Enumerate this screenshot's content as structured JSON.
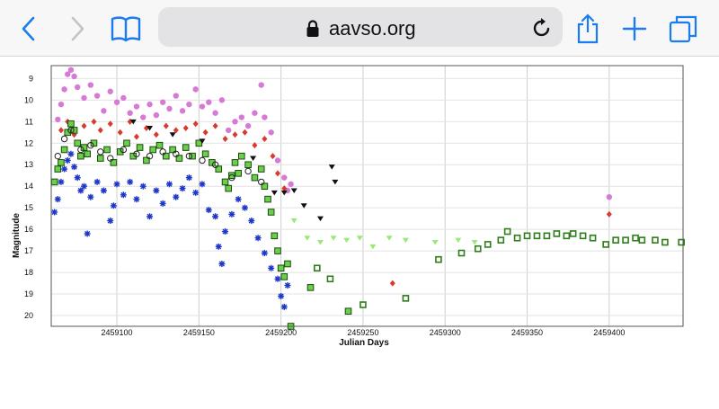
{
  "browser": {
    "url": "aavso.org",
    "colors": {
      "accent": "#1a7cf0",
      "url_bar": "#e3e3e5",
      "toolbar": "#f7f7f7"
    },
    "icons": [
      "back-chevron-icon",
      "forward-chevron-icon",
      "bookmarks-icon",
      "lock-icon",
      "reload-icon",
      "share-icon",
      "plus-icon",
      "tabs-icon"
    ]
  },
  "chart_data": {
    "type": "scatter",
    "xlabel": "Julian Days",
    "ylabel": "Magnitude",
    "xlim": [
      2459060,
      2459445
    ],
    "ylim": [
      20.5,
      8.4
    ],
    "y_inverted": true,
    "grid": true,
    "xticks": [
      2459100,
      2459150,
      2459200,
      2459250,
      2459300,
      2459350,
      2459400
    ],
    "xtick_labels": [
      "2459100",
      "2459150",
      "2459200",
      "2459250",
      "2459300",
      "2459350",
      "2459400"
    ],
    "yticks": [
      9,
      10,
      11,
      12,
      13,
      14,
      15,
      16,
      17,
      18,
      19,
      20
    ],
    "ytick_labels": [
      "9",
      "10",
      "11",
      "12",
      "13",
      "14",
      "15",
      "16",
      "17",
      "18",
      "19",
      "20"
    ],
    "series": [
      {
        "marker": "circle",
        "color": "#d67ad6",
        "points": [
          [
            2459064,
            10.9
          ],
          [
            2459066,
            10.2
          ],
          [
            2459068,
            9.5
          ],
          [
            2459070,
            8.8
          ],
          [
            2459072,
            8.6
          ],
          [
            2459074,
            8.9
          ],
          [
            2459076,
            9.4
          ],
          [
            2459080,
            9.9
          ],
          [
            2459084,
            9.3
          ],
          [
            2459088,
            9.8
          ],
          [
            2459092,
            10.5
          ],
          [
            2459096,
            9.6
          ],
          [
            2459100,
            10.1
          ],
          [
            2459104,
            9.9
          ],
          [
            2459108,
            10.6
          ],
          [
            2459112,
            10.3
          ],
          [
            2459116,
            10.8
          ],
          [
            2459120,
            10.2
          ],
          [
            2459124,
            10.7
          ],
          [
            2459128,
            10.1
          ],
          [
            2459132,
            10.4
          ],
          [
            2459136,
            9.8
          ],
          [
            2459140,
            10.5
          ],
          [
            2459144,
            10.2
          ],
          [
            2459148,
            9.5
          ],
          [
            2459152,
            10.3
          ],
          [
            2459156,
            10.1
          ],
          [
            2459160,
            10.6
          ],
          [
            2459164,
            10.0
          ],
          [
            2459168,
            11.4
          ],
          [
            2459172,
            11.0
          ],
          [
            2459176,
            10.8
          ],
          [
            2459180,
            11.2
          ],
          [
            2459184,
            10.6
          ],
          [
            2459188,
            9.3
          ],
          [
            2459190,
            10.8
          ],
          [
            2459194,
            11.5
          ],
          [
            2459198,
            12.8
          ],
          [
            2459202,
            13.6
          ],
          [
            2459204,
            14.2
          ],
          [
            2459206,
            13.9
          ],
          [
            2459400,
            14.5
          ]
        ]
      },
      {
        "marker": "diamond",
        "color": "#d83a2b",
        "points": [
          [
            2459066,
            11.4
          ],
          [
            2459070,
            11.0
          ],
          [
            2459074,
            11.6
          ],
          [
            2459080,
            11.2
          ],
          [
            2459086,
            11.0
          ],
          [
            2459090,
            11.4
          ],
          [
            2459096,
            11.1
          ],
          [
            2459102,
            11.5
          ],
          [
            2459108,
            11.0
          ],
          [
            2459112,
            11.7
          ],
          [
            2459118,
            11.3
          ],
          [
            2459124,
            11.6
          ],
          [
            2459130,
            11.2
          ],
          [
            2459136,
            11.4
          ],
          [
            2459142,
            11.3
          ],
          [
            2459148,
            11.1
          ],
          [
            2459154,
            11.5
          ],
          [
            2459160,
            11.2
          ],
          [
            2459166,
            11.8
          ],
          [
            2459172,
            11.6
          ],
          [
            2459178,
            11.5
          ],
          [
            2459184,
            12.1
          ],
          [
            2459190,
            11.8
          ],
          [
            2459195,
            12.6
          ],
          [
            2459198,
            13.4
          ],
          [
            2459202,
            14.1
          ],
          [
            2459268,
            18.5
          ],
          [
            2459400,
            15.3
          ]
        ]
      },
      {
        "marker": "square",
        "color": "#6ad04a",
        "points": [
          [
            2459062,
            13.8
          ],
          [
            2459064,
            13.2
          ],
          [
            2459066,
            12.9
          ],
          [
            2459068,
            12.3
          ],
          [
            2459070,
            11.5
          ],
          [
            2459072,
            11.1
          ],
          [
            2459074,
            11.4
          ],
          [
            2459076,
            12.0
          ],
          [
            2459078,
            12.6
          ],
          [
            2459080,
            12.2
          ],
          [
            2459082,
            12.5
          ],
          [
            2459086,
            12.0
          ],
          [
            2459090,
            12.7
          ],
          [
            2459094,
            12.3
          ],
          [
            2459098,
            12.9
          ],
          [
            2459102,
            12.4
          ],
          [
            2459106,
            12.0
          ],
          [
            2459110,
            12.6
          ],
          [
            2459114,
            12.2
          ],
          [
            2459118,
            12.8
          ],
          [
            2459122,
            12.3
          ],
          [
            2459126,
            12.1
          ],
          [
            2459130,
            12.6
          ],
          [
            2459134,
            12.3
          ],
          [
            2459138,
            12.7
          ],
          [
            2459142,
            12.2
          ],
          [
            2459146,
            12.6
          ],
          [
            2459150,
            12.0
          ],
          [
            2459154,
            12.5
          ],
          [
            2459158,
            12.9
          ],
          [
            2459162,
            13.2
          ],
          [
            2459166,
            13.8
          ],
          [
            2459168,
            14.1
          ],
          [
            2459170,
            13.5
          ],
          [
            2459172,
            12.9
          ],
          [
            2459174,
            13.4
          ],
          [
            2459176,
            12.6
          ],
          [
            2459180,
            13.0
          ],
          [
            2459184,
            13.6
          ],
          [
            2459188,
            13.2
          ],
          [
            2459190,
            14.0
          ],
          [
            2459192,
            14.6
          ],
          [
            2459194,
            15.2
          ],
          [
            2459196,
            16.3
          ],
          [
            2459198,
            17.0
          ],
          [
            2459200,
            17.8
          ],
          [
            2459202,
            18.2
          ],
          [
            2459204,
            17.6
          ],
          [
            2459206,
            20.5
          ],
          [
            2459218,
            18.7
          ],
          [
            2459241,
            19.8
          ]
        ]
      },
      {
        "marker": "circle-open",
        "color": "#222222",
        "points": [
          [
            2459064,
            12.6
          ],
          [
            2459068,
            11.8
          ],
          [
            2459072,
            11.4
          ],
          [
            2459078,
            12.3
          ],
          [
            2459084,
            12.1
          ],
          [
            2459090,
            12.4
          ],
          [
            2459096,
            12.7
          ],
          [
            2459104,
            12.3
          ],
          [
            2459112,
            12.5
          ],
          [
            2459120,
            12.6
          ],
          [
            2459128,
            12.4
          ],
          [
            2459136,
            12.5
          ],
          [
            2459144,
            12.6
          ],
          [
            2459152,
            12.8
          ],
          [
            2459160,
            13.0
          ],
          [
            2459170,
            13.6
          ],
          [
            2459180,
            13.3
          ],
          [
            2459188,
            13.8
          ]
        ]
      },
      {
        "marker": "star",
        "color": "#1f37c8",
        "points": [
          [
            2459062,
            15.2
          ],
          [
            2459064,
            14.6
          ],
          [
            2459066,
            13.8
          ],
          [
            2459068,
            13.2
          ],
          [
            2459070,
            12.8
          ],
          [
            2459072,
            12.5
          ],
          [
            2459074,
            13.1
          ],
          [
            2459076,
            13.6
          ],
          [
            2459078,
            14.2
          ],
          [
            2459080,
            14.0
          ],
          [
            2459082,
            16.2
          ],
          [
            2459084,
            14.5
          ],
          [
            2459088,
            13.8
          ],
          [
            2459092,
            14.2
          ],
          [
            2459096,
            15.6
          ],
          [
            2459098,
            14.9
          ],
          [
            2459100,
            13.9
          ],
          [
            2459104,
            14.4
          ],
          [
            2459108,
            13.8
          ],
          [
            2459112,
            14.6
          ],
          [
            2459116,
            14.0
          ],
          [
            2459120,
            15.4
          ],
          [
            2459124,
            14.2
          ],
          [
            2459128,
            14.8
          ],
          [
            2459132,
            13.9
          ],
          [
            2459136,
            14.5
          ],
          [
            2459140,
            14.1
          ],
          [
            2459144,
            13.6
          ],
          [
            2459148,
            14.3
          ],
          [
            2459152,
            13.9
          ],
          [
            2459156,
            15.1
          ],
          [
            2459160,
            15.4
          ],
          [
            2459162,
            16.8
          ],
          [
            2459164,
            17.6
          ],
          [
            2459166,
            16.1
          ],
          [
            2459170,
            15.3
          ],
          [
            2459174,
            14.6
          ],
          [
            2459178,
            15.0
          ],
          [
            2459182,
            15.6
          ],
          [
            2459186,
            16.4
          ],
          [
            2459190,
            17.1
          ],
          [
            2459194,
            17.8
          ],
          [
            2459198,
            18.3
          ],
          [
            2459200,
            19.1
          ],
          [
            2459202,
            19.6
          ],
          [
            2459204,
            18.6
          ]
        ]
      },
      {
        "marker": "triangle-down",
        "color": "#111111",
        "points": [
          [
            2459110,
            11.0
          ],
          [
            2459120,
            11.3
          ],
          [
            2459134,
            11.6
          ],
          [
            2459152,
            11.9
          ],
          [
            2459183,
            12.7
          ],
          [
            2459196,
            14.3
          ],
          [
            2459202,
            14.3
          ],
          [
            2459208,
            14.2
          ],
          [
            2459214,
            14.9
          ],
          [
            2459224,
            15.5
          ],
          [
            2459231,
            13.1
          ],
          [
            2459233,
            13.8
          ]
        ]
      },
      {
        "marker": "triangle-down",
        "color": "#9be77c",
        "points": [
          [
            2459208,
            15.6
          ],
          [
            2459216,
            16.4
          ],
          [
            2459224,
            16.6
          ],
          [
            2459232,
            16.4
          ],
          [
            2459240,
            16.5
          ],
          [
            2459248,
            16.4
          ],
          [
            2459256,
            16.8
          ],
          [
            2459266,
            16.4
          ],
          [
            2459276,
            16.5
          ],
          [
            2459294,
            16.6
          ],
          [
            2459308,
            16.5
          ],
          [
            2459318,
            16.6
          ]
        ]
      },
      {
        "marker": "square-open",
        "color": "#2e7d1a",
        "points": [
          [
            2459222,
            17.8
          ],
          [
            2459230,
            18.3
          ],
          [
            2459250,
            19.5
          ],
          [
            2459276,
            19.2
          ],
          [
            2459296,
            17.4
          ],
          [
            2459310,
            17.1
          ],
          [
            2459320,
            16.9
          ],
          [
            2459326,
            16.7
          ],
          [
            2459334,
            16.5
          ],
          [
            2459338,
            16.1
          ],
          [
            2459344,
            16.4
          ],
          [
            2459350,
            16.3
          ],
          [
            2459356,
            16.3
          ],
          [
            2459362,
            16.3
          ],
          [
            2459368,
            16.2
          ],
          [
            2459374,
            16.3
          ],
          [
            2459378,
            16.2
          ],
          [
            2459384,
            16.3
          ],
          [
            2459390,
            16.4
          ],
          [
            2459398,
            16.7
          ],
          [
            2459404,
            16.5
          ],
          [
            2459410,
            16.5
          ],
          [
            2459416,
            16.4
          ],
          [
            2459420,
            16.5
          ],
          [
            2459428,
            16.5
          ],
          [
            2459434,
            16.6
          ],
          [
            2459444,
            16.6
          ]
        ]
      }
    ]
  }
}
